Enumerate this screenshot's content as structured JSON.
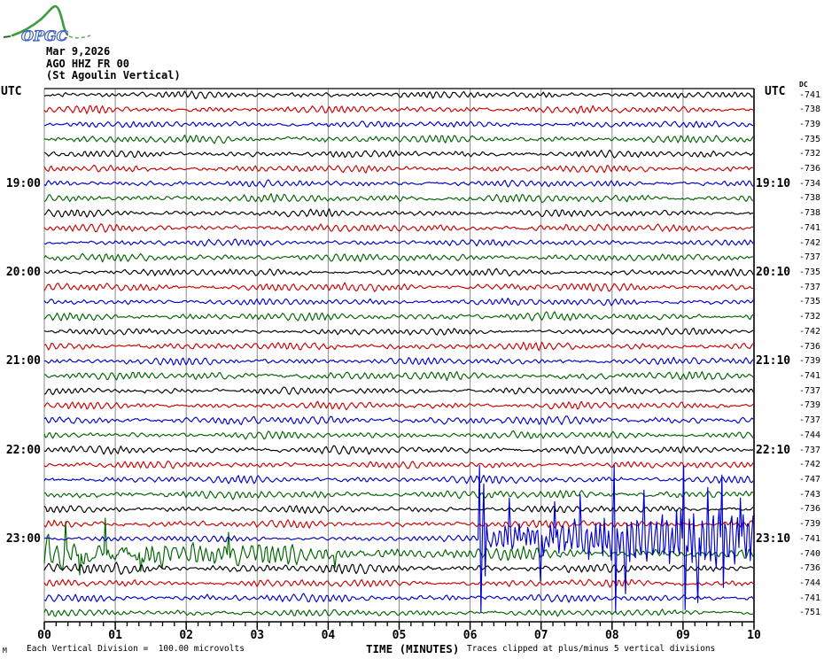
{
  "header": {
    "logo_text": "OPGC",
    "date": "Mar 9,2026",
    "station": "AGO HHZ FR 00",
    "description": "(St Agoulin Vertical)"
  },
  "axis": {
    "utc_left": "UTC",
    "utc_right": "UTC",
    "dc_header": "DC",
    "x_title": "TIME (MINUTES)"
  },
  "footer": {
    "corner_mark": "M",
    "scale_note": "Each Vertical Division =  100.00 microvolts",
    "clip_note": "Traces clipped at plus/minus 5 vertical divisions"
  },
  "chart_data": {
    "type": "line",
    "subtype": "helicorder-seismogram",
    "title": "AGO HHZ FR 00 (St Agoulin Vertical) Mar 9,2026",
    "xlabel": "TIME (MINUTES)",
    "x_range_minutes": [
      0,
      10
    ],
    "x_tick_labels": [
      "00",
      "01",
      "02",
      "03",
      "04",
      "05",
      "06",
      "07",
      "08",
      "09",
      "10"
    ],
    "minor_ticks_per_minute": 6,
    "vertical_division_microvolts": 100.0,
    "clip_divisions": 5,
    "colors": {
      "black": "#000000",
      "red": "#cc0000",
      "blue": "#0000cc",
      "green": "#006400",
      "grid": "#8a8a8a"
    },
    "event": {
      "description": "Large clipped seismic event on 23:00-23:10 trace, onset ~23:06, coda decaying through 23:10-23:20 trace",
      "onset_minute": 6.13,
      "spikes": [
        [
          6.13,
          84,
          -84
        ],
        [
          6.2,
          62,
          -42
        ],
        [
          6.55,
          46
        ],
        [
          7.0,
          -48
        ],
        [
          7.2,
          42
        ],
        [
          7.55,
          50
        ],
        [
          8.02,
          84,
          -84
        ],
        [
          8.18,
          -62
        ],
        [
          8.45,
          55
        ],
        [
          9.0,
          83,
          -80
        ],
        [
          9.2,
          -72
        ],
        [
          9.35,
          58
        ],
        [
          9.55,
          72,
          -55
        ],
        [
          9.8,
          46
        ]
      ],
      "decay_spikes": [
        [
          0.3,
          36
        ],
        [
          0.5,
          -24
        ],
        [
          0.85,
          40
        ],
        [
          1.35,
          -20
        ],
        [
          2.6,
          24
        ],
        [
          4.1,
          -16
        ]
      ]
    },
    "traces": [
      {
        "start": "18:00",
        "color": "black",
        "dc": -741,
        "left_label": "",
        "right_label": "",
        "amp": 3.0,
        "kind": "normal"
      },
      {
        "start": "18:10",
        "color": "red",
        "dc": -738,
        "left_label": "",
        "right_label": "",
        "amp": 3.2,
        "kind": "normal"
      },
      {
        "start": "18:20",
        "color": "blue",
        "dc": -739,
        "left_label": "",
        "right_label": "",
        "amp": 2.8,
        "kind": "normal"
      },
      {
        "start": "18:30",
        "color": "green",
        "dc": -735,
        "left_label": "",
        "right_label": "",
        "amp": 3.4,
        "kind": "normal"
      },
      {
        "start": "18:40",
        "color": "black",
        "dc": -732,
        "left_label": "",
        "right_label": "",
        "amp": 3.0,
        "kind": "normal"
      },
      {
        "start": "18:50",
        "color": "red",
        "dc": -736,
        "left_label": "",
        "right_label": "",
        "amp": 3.2,
        "kind": "normal"
      },
      {
        "start": "19:00",
        "color": "blue",
        "dc": -734,
        "left_label": "19:00",
        "right_label": "19:10",
        "amp": 2.9,
        "kind": "normal"
      },
      {
        "start": "19:10",
        "color": "green",
        "dc": -738,
        "left_label": "",
        "right_label": "",
        "amp": 3.5,
        "kind": "normal"
      },
      {
        "start": "19:20",
        "color": "black",
        "dc": -738,
        "left_label": "",
        "right_label": "",
        "amp": 3.1,
        "kind": "normal"
      },
      {
        "start": "19:30",
        "color": "red",
        "dc": -741,
        "left_label": "",
        "right_label": "",
        "amp": 3.3,
        "kind": "normal"
      },
      {
        "start": "19:40",
        "color": "blue",
        "dc": -742,
        "left_label": "",
        "right_label": "",
        "amp": 2.8,
        "kind": "normal"
      },
      {
        "start": "19:50",
        "color": "green",
        "dc": -737,
        "left_label": "",
        "right_label": "",
        "amp": 3.2,
        "kind": "normal"
      },
      {
        "start": "20:00",
        "color": "black",
        "dc": -735,
        "left_label": "20:00",
        "right_label": "20:10",
        "amp": 3.0,
        "kind": "normal"
      },
      {
        "start": "20:10",
        "color": "red",
        "dc": -737,
        "left_label": "",
        "right_label": "",
        "amp": 3.6,
        "kind": "normal"
      },
      {
        "start": "20:20",
        "color": "blue",
        "dc": -735,
        "left_label": "",
        "right_label": "",
        "amp": 3.0,
        "kind": "normal"
      },
      {
        "start": "20:30",
        "color": "green",
        "dc": -732,
        "left_label": "",
        "right_label": "",
        "amp": 3.4,
        "kind": "normal"
      },
      {
        "start": "20:40",
        "color": "black",
        "dc": -742,
        "left_label": "",
        "right_label": "",
        "amp": 2.9,
        "kind": "normal"
      },
      {
        "start": "20:50",
        "color": "red",
        "dc": -736,
        "left_label": "",
        "right_label": "",
        "amp": 3.3,
        "kind": "normal"
      },
      {
        "start": "21:00",
        "color": "blue",
        "dc": -739,
        "left_label": "21:00",
        "right_label": "21:10",
        "amp": 3.1,
        "kind": "normal"
      },
      {
        "start": "21:10",
        "color": "green",
        "dc": -741,
        "left_label": "",
        "right_label": "",
        "amp": 3.5,
        "kind": "normal"
      },
      {
        "start": "21:20",
        "color": "black",
        "dc": -737,
        "left_label": "",
        "right_label": "",
        "amp": 3.0,
        "kind": "normal"
      },
      {
        "start": "21:30",
        "color": "red",
        "dc": -739,
        "left_label": "",
        "right_label": "",
        "amp": 3.2,
        "kind": "normal"
      },
      {
        "start": "21:40",
        "color": "blue",
        "dc": -737,
        "left_label": "",
        "right_label": "",
        "amp": 3.6,
        "kind": "normal"
      },
      {
        "start": "21:50",
        "color": "green",
        "dc": -744,
        "left_label": "",
        "right_label": "",
        "amp": 3.1,
        "kind": "normal"
      },
      {
        "start": "22:00",
        "color": "black",
        "dc": -737,
        "left_label": "22:00",
        "right_label": "22:10",
        "amp": 3.3,
        "kind": "normal"
      },
      {
        "start": "22:10",
        "color": "red",
        "dc": -742,
        "left_label": "",
        "right_label": "",
        "amp": 3.0,
        "kind": "normal"
      },
      {
        "start": "22:20",
        "color": "blue",
        "dc": -747,
        "left_label": "",
        "right_label": "",
        "amp": 3.2,
        "kind": "normal"
      },
      {
        "start": "22:30",
        "color": "green",
        "dc": -743,
        "left_label": "",
        "right_label": "",
        "amp": 3.6,
        "kind": "normal"
      },
      {
        "start": "22:40",
        "color": "black",
        "dc": -736,
        "left_label": "",
        "right_label": "",
        "amp": 3.0,
        "kind": "normal"
      },
      {
        "start": "22:50",
        "color": "red",
        "dc": -739,
        "left_label": "",
        "right_label": "",
        "amp": 3.2,
        "kind": "normal"
      },
      {
        "start": "23:00",
        "color": "blue",
        "dc": -741,
        "left_label": "23:00",
        "right_label": "23:10",
        "amp": 2.6,
        "kind": "event"
      },
      {
        "start": "23:10",
        "color": "green",
        "dc": -740,
        "left_label": "",
        "right_label": "",
        "amp": 3.5,
        "kind": "decay"
      },
      {
        "start": "23:20",
        "color": "black",
        "dc": -736,
        "left_label": "",
        "right_label": "",
        "amp": 3.2,
        "kind": "elevated"
      },
      {
        "start": "23:30",
        "color": "red",
        "dc": -744,
        "left_label": "",
        "right_label": "",
        "amp": 3.2,
        "kind": "normal"
      },
      {
        "start": "23:40",
        "color": "blue",
        "dc": -741,
        "left_label": "",
        "right_label": "",
        "amp": 3.4,
        "kind": "normal"
      },
      {
        "start": "23:50",
        "color": "green",
        "dc": -751,
        "left_label": "",
        "right_label": "",
        "amp": 3.0,
        "kind": "normal"
      }
    ]
  }
}
